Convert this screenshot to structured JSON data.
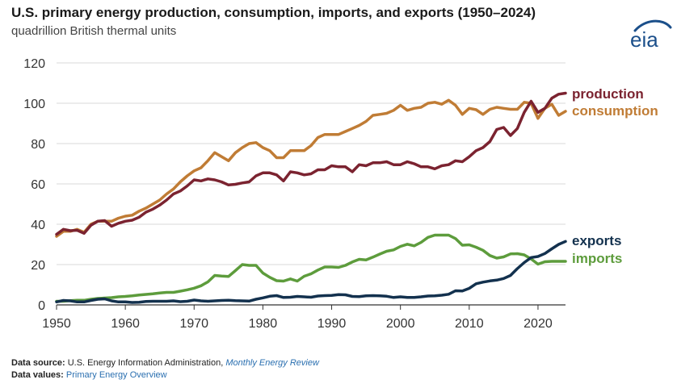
{
  "header": {
    "title": "U.S. primary energy production, consumption, imports, and exports (1950–2024)",
    "subtitle": "quadrillion British thermal units",
    "logo_text": "eia"
  },
  "footer": {
    "source_label": "Data source:",
    "source_text": "U.S. Energy Information Administration,",
    "source_link": "Monthly Energy Review",
    "values_label": "Data values:",
    "values_link": "Primary Energy Overview"
  },
  "colors": {
    "production": "#7b2330",
    "consumption": "#c07c35",
    "imports": "#5d9c3c",
    "exports": "#13314e",
    "grid": "#d9d9d9",
    "axis": "#333333",
    "logo": "#1b4f8a"
  },
  "chart_data": {
    "type": "line",
    "title": "U.S. primary energy production, consumption, imports, and exports (1950–2024)",
    "ylabel": "quadrillion British thermal units",
    "xlim": [
      1950,
      2024
    ],
    "ylim": [
      0,
      120
    ],
    "x_ticks": [
      1950,
      1960,
      1970,
      1980,
      1990,
      2000,
      2010,
      2020
    ],
    "y_ticks": [
      0,
      20,
      40,
      60,
      80,
      100,
      120
    ],
    "grid": "horizontal",
    "legend": "direct labels at line ends",
    "series": [
      {
        "name": "production",
        "points": [
          [
            1950,
            35
          ],
          [
            1951,
            37.5
          ],
          [
            1952,
            36.8
          ],
          [
            1953,
            37
          ],
          [
            1954,
            35.5
          ],
          [
            1955,
            39.5
          ],
          [
            1956,
            41.5
          ],
          [
            1957,
            41.8
          ],
          [
            1958,
            39
          ],
          [
            1959,
            40.5
          ],
          [
            1960,
            41.5
          ],
          [
            1961,
            42
          ],
          [
            1962,
            43.5
          ],
          [
            1963,
            46
          ],
          [
            1964,
            47.5
          ],
          [
            1965,
            49.5
          ],
          [
            1966,
            52
          ],
          [
            1967,
            55
          ],
          [
            1968,
            56.5
          ],
          [
            1969,
            59
          ],
          [
            1970,
            62
          ],
          [
            1971,
            61.5
          ],
          [
            1972,
            62.5
          ],
          [
            1973,
            62
          ],
          [
            1974,
            61
          ],
          [
            1975,
            59.5
          ],
          [
            1976,
            59.8
          ],
          [
            1977,
            60.5
          ],
          [
            1978,
            61
          ],
          [
            1979,
            64
          ],
          [
            1980,
            65.5
          ],
          [
            1981,
            65.5
          ],
          [
            1982,
            64.5
          ],
          [
            1983,
            61.5
          ],
          [
            1984,
            66
          ],
          [
            1985,
            65.5
          ],
          [
            1986,
            64.5
          ],
          [
            1987,
            65
          ],
          [
            1988,
            67
          ],
          [
            1989,
            67
          ],
          [
            1990,
            69
          ],
          [
            1991,
            68.5
          ],
          [
            1992,
            68.5
          ],
          [
            1993,
            66
          ],
          [
            1994,
            69.5
          ],
          [
            1995,
            69
          ],
          [
            1996,
            70.5
          ],
          [
            1997,
            70.5
          ],
          [
            1998,
            71
          ],
          [
            1999,
            69.5
          ],
          [
            2000,
            69.5
          ],
          [
            2001,
            71
          ],
          [
            2002,
            70
          ],
          [
            2003,
            68.5
          ],
          [
            2004,
            68.5
          ],
          [
            2005,
            67.5
          ],
          [
            2006,
            69
          ],
          [
            2007,
            69.5
          ],
          [
            2008,
            71.5
          ],
          [
            2009,
            71
          ],
          [
            2010,
            73.5
          ],
          [
            2011,
            76.5
          ],
          [
            2012,
            78
          ],
          [
            2013,
            81
          ],
          [
            2014,
            87
          ],
          [
            2015,
            88
          ],
          [
            2016,
            84
          ],
          [
            2017,
            87.5
          ],
          [
            2018,
            95.5
          ],
          [
            2019,
            101
          ],
          [
            2020,
            95.5
          ],
          [
            2021,
            97.5
          ],
          [
            2022,
            102.5
          ],
          [
            2023,
            104.5
          ],
          [
            2024,
            105
          ]
        ]
      },
      {
        "name": "consumption",
        "points": [
          [
            1950,
            34
          ],
          [
            1951,
            36.5
          ],
          [
            1952,
            36.5
          ],
          [
            1953,
            37.5
          ],
          [
            1954,
            36
          ],
          [
            1955,
            40
          ],
          [
            1956,
            41.5
          ],
          [
            1957,
            41.5
          ],
          [
            1958,
            41.5
          ],
          [
            1959,
            43
          ],
          [
            1960,
            44
          ],
          [
            1961,
            44.5
          ],
          [
            1962,
            46.5
          ],
          [
            1963,
            48
          ],
          [
            1964,
            50
          ],
          [
            1965,
            52
          ],
          [
            1966,
            55
          ],
          [
            1967,
            57.5
          ],
          [
            1968,
            61
          ],
          [
            1969,
            64
          ],
          [
            1970,
            66.5
          ],
          [
            1971,
            68
          ],
          [
            1972,
            71.5
          ],
          [
            1973,
            75.5
          ],
          [
            1974,
            73.5
          ],
          [
            1975,
            71.5
          ],
          [
            1976,
            75.5
          ],
          [
            1977,
            78
          ],
          [
            1978,
            80
          ],
          [
            1979,
            80.5
          ],
          [
            1980,
            78
          ],
          [
            1981,
            76.5
          ],
          [
            1982,
            73
          ],
          [
            1983,
            73
          ],
          [
            1984,
            76.5
          ],
          [
            1985,
            76.5
          ],
          [
            1986,
            76.5
          ],
          [
            1987,
            79
          ],
          [
            1988,
            83
          ],
          [
            1989,
            84.5
          ],
          [
            1990,
            84.5
          ],
          [
            1991,
            84.5
          ],
          [
            1992,
            86
          ],
          [
            1993,
            87.5
          ],
          [
            1994,
            89
          ],
          [
            1995,
            91
          ],
          [
            1996,
            94
          ],
          [
            1997,
            94.5
          ],
          [
            1998,
            95
          ],
          [
            1999,
            96.5
          ],
          [
            2000,
            99
          ],
          [
            2001,
            96.5
          ],
          [
            2002,
            97.5
          ],
          [
            2003,
            98
          ],
          [
            2004,
            100
          ],
          [
            2005,
            100.5
          ],
          [
            2006,
            99.5
          ],
          [
            2007,
            101.5
          ],
          [
            2008,
            99
          ],
          [
            2009,
            94.5
          ],
          [
            2010,
            97.5
          ],
          [
            2011,
            96.8
          ],
          [
            2012,
            94.5
          ],
          [
            2013,
            97
          ],
          [
            2014,
            98
          ],
          [
            2015,
            97.5
          ],
          [
            2016,
            97
          ],
          [
            2017,
            97
          ],
          [
            2018,
            100.5
          ],
          [
            2019,
            100
          ],
          [
            2020,
            92.5
          ],
          [
            2021,
            97.5
          ],
          [
            2022,
            99.5
          ],
          [
            2023,
            94
          ],
          [
            2024,
            96
          ]
        ]
      },
      {
        "name": "exports",
        "points": [
          [
            1950,
            1.5
          ],
          [
            1951,
            2.2
          ],
          [
            1952,
            2
          ],
          [
            1953,
            1.5
          ],
          [
            1954,
            1.5
          ],
          [
            1955,
            2.2
          ],
          [
            1956,
            2.8
          ],
          [
            1957,
            3
          ],
          [
            1958,
            2
          ],
          [
            1959,
            1.5
          ],
          [
            1960,
            1.5
          ],
          [
            1961,
            1.2
          ],
          [
            1962,
            1.3
          ],
          [
            1963,
            1.7
          ],
          [
            1964,
            1.8
          ],
          [
            1965,
            1.8
          ],
          [
            1966,
            1.8
          ],
          [
            1967,
            2
          ],
          [
            1968,
            1.6
          ],
          [
            1969,
            1.8
          ],
          [
            1970,
            2.4
          ],
          [
            1971,
            2
          ],
          [
            1972,
            1.8
          ],
          [
            1973,
            2
          ],
          [
            1974,
            2.2
          ],
          [
            1975,
            2.3
          ],
          [
            1976,
            2.1
          ],
          [
            1977,
            2
          ],
          [
            1978,
            1.9
          ],
          [
            1979,
            2.8
          ],
          [
            1980,
            3.5
          ],
          [
            1981,
            4.3
          ],
          [
            1982,
            4.6
          ],
          [
            1983,
            3.7
          ],
          [
            1984,
            3.8
          ],
          [
            1985,
            4.2
          ],
          [
            1986,
            4
          ],
          [
            1987,
            3.8
          ],
          [
            1988,
            4.4
          ],
          [
            1989,
            4.6
          ],
          [
            1990,
            4.7
          ],
          [
            1991,
            5.1
          ],
          [
            1992,
            5
          ],
          [
            1993,
            4.2
          ],
          [
            1994,
            4.1
          ],
          [
            1995,
            4.5
          ],
          [
            1996,
            4.6
          ],
          [
            1997,
            4.5
          ],
          [
            1998,
            4.3
          ],
          [
            1999,
            3.7
          ],
          [
            2000,
            4
          ],
          [
            2001,
            3.7
          ],
          [
            2002,
            3.7
          ],
          [
            2003,
            4
          ],
          [
            2004,
            4.4
          ],
          [
            2005,
            4.5
          ],
          [
            2006,
            4.8
          ],
          [
            2007,
            5.3
          ],
          [
            2008,
            7
          ],
          [
            2009,
            6.9
          ],
          [
            2010,
            8.2
          ],
          [
            2011,
            10.5
          ],
          [
            2012,
            11.3
          ],
          [
            2013,
            11.9
          ],
          [
            2014,
            12.3
          ],
          [
            2015,
            13.1
          ],
          [
            2016,
            14.6
          ],
          [
            2017,
            18
          ],
          [
            2018,
            21
          ],
          [
            2019,
            23.5
          ],
          [
            2020,
            24
          ],
          [
            2021,
            25.5
          ],
          [
            2022,
            27.8
          ],
          [
            2023,
            30
          ],
          [
            2024,
            31.5
          ]
        ]
      },
      {
        "name": "imports",
        "points": [
          [
            1950,
            1.8
          ],
          [
            1951,
            1.8
          ],
          [
            1952,
            2.1
          ],
          [
            1953,
            2.3
          ],
          [
            1954,
            2.3
          ],
          [
            1955,
            2.8
          ],
          [
            1956,
            3.2
          ],
          [
            1957,
            3.4
          ],
          [
            1958,
            3.6
          ],
          [
            1959,
            4
          ],
          [
            1960,
            4.2
          ],
          [
            1961,
            4.5
          ],
          [
            1962,
            4.9
          ],
          [
            1963,
            5.2
          ],
          [
            1964,
            5.5
          ],
          [
            1965,
            5.9
          ],
          [
            1966,
            6.2
          ],
          [
            1967,
            6.2
          ],
          [
            1968,
            6.8
          ],
          [
            1969,
            7.5
          ],
          [
            1970,
            8.3
          ],
          [
            1971,
            9.5
          ],
          [
            1972,
            11.4
          ],
          [
            1973,
            14.6
          ],
          [
            1974,
            14.3
          ],
          [
            1975,
            14.1
          ],
          [
            1976,
            17
          ],
          [
            1977,
            20
          ],
          [
            1978,
            19.6
          ],
          [
            1979,
            19.6
          ],
          [
            1980,
            15.8
          ],
          [
            1981,
            13.7
          ],
          [
            1982,
            12
          ],
          [
            1983,
            11.8
          ],
          [
            1984,
            12.9
          ],
          [
            1985,
            11.8
          ],
          [
            1986,
            14.2
          ],
          [
            1987,
            15.4
          ],
          [
            1988,
            17.3
          ],
          [
            1989,
            18.8
          ],
          [
            1990,
            18.8
          ],
          [
            1991,
            18.6
          ],
          [
            1992,
            19.6
          ],
          [
            1993,
            21.3
          ],
          [
            1994,
            22.6
          ],
          [
            1995,
            22.3
          ],
          [
            1996,
            23.7
          ],
          [
            1997,
            25.2
          ],
          [
            1998,
            26.6
          ],
          [
            1999,
            27.3
          ],
          [
            2000,
            29
          ],
          [
            2001,
            30.1
          ],
          [
            2002,
            29.3
          ],
          [
            2003,
            31
          ],
          [
            2004,
            33.5
          ],
          [
            2005,
            34.6
          ],
          [
            2006,
            34.6
          ],
          [
            2007,
            34.6
          ],
          [
            2008,
            32.9
          ],
          [
            2009,
            29.6
          ],
          [
            2010,
            29.8
          ],
          [
            2011,
            28.6
          ],
          [
            2012,
            27.1
          ],
          [
            2013,
            24.5
          ],
          [
            2014,
            23.2
          ],
          [
            2015,
            23.8
          ],
          [
            2016,
            25.3
          ],
          [
            2017,
            25.4
          ],
          [
            2018,
            24.8
          ],
          [
            2019,
            22.8
          ],
          [
            2020,
            20.2
          ],
          [
            2021,
            21.4
          ],
          [
            2022,
            21.6
          ],
          [
            2023,
            21.6
          ],
          [
            2024,
            21.6
          ]
        ]
      }
    ],
    "series_labels": [
      "production",
      "consumption",
      "exports",
      "imports"
    ]
  }
}
